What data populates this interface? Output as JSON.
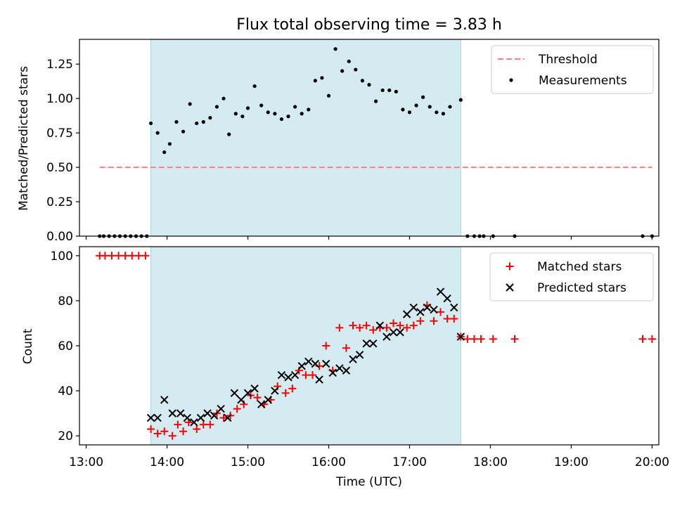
{
  "chart_data": [
    {
      "type": "scatter",
      "title": "Flux total observing time = 3.83 h",
      "ylabel": "Matched/Predicted stars",
      "xlabel": "",
      "xlim": [
        "13:00",
        "20:00"
      ],
      "ylim": [
        0,
        1.43
      ],
      "yticks": [
        0,
        0.25,
        0.5,
        0.75,
        1.0,
        1.25
      ],
      "ytick_labels": [
        "0.00",
        "0.25",
        "0.50",
        "0.75",
        "1.00",
        "1.25"
      ],
      "legend_position": "top-right",
      "shaded_interval": {
        "start": "13:48",
        "end": "17:38",
        "color": "#d4ebf1"
      },
      "threshold": {
        "name": "Threshold",
        "y": 0.5,
        "x_start": "13:10",
        "x_end": "20:00",
        "color": "#ff7f7f",
        "style": "dashed"
      },
      "series": [
        {
          "name": "Measurements",
          "marker": "dot",
          "color": "#000000",
          "points": [
            [
              "13:10",
              0
            ],
            [
              "13:13",
              0
            ],
            [
              "13:17",
              0
            ],
            [
              "13:21",
              0
            ],
            [
              "13:25",
              0
            ],
            [
              "13:29",
              0
            ],
            [
              "13:33",
              0
            ],
            [
              "13:37",
              0
            ],
            [
              "13:41",
              0
            ],
            [
              "13:45",
              0
            ],
            [
              "13:48",
              0.82
            ],
            [
              "13:53",
              0.75
            ],
            [
              "13:58",
              0.61
            ],
            [
              "14:02",
              0.67
            ],
            [
              "14:07",
              0.83
            ],
            [
              "14:12",
              0.76
            ],
            [
              "14:17",
              0.96
            ],
            [
              "14:22",
              0.82
            ],
            [
              "14:27",
              0.83
            ],
            [
              "14:32",
              0.86
            ],
            [
              "14:37",
              0.94
            ],
            [
              "14:42",
              1.0
            ],
            [
              "14:46",
              0.74
            ],
            [
              "14:51",
              0.89
            ],
            [
              "14:56",
              0.87
            ],
            [
              "15:00",
              0.93
            ],
            [
              "15:05",
              1.09
            ],
            [
              "15:10",
              0.95
            ],
            [
              "15:15",
              0.9
            ],
            [
              "15:20",
              0.89
            ],
            [
              "15:25",
              0.85
            ],
            [
              "15:30",
              0.87
            ],
            [
              "15:35",
              0.94
            ],
            [
              "15:40",
              0.89
            ],
            [
              "15:45",
              0.92
            ],
            [
              "15:50",
              1.13
            ],
            [
              "15:55",
              1.15
            ],
            [
              "16:00",
              1.02
            ],
            [
              "16:05",
              1.36
            ],
            [
              "16:10",
              1.2
            ],
            [
              "16:15",
              1.27
            ],
            [
              "16:20",
              1.21
            ],
            [
              "16:25",
              1.13
            ],
            [
              "16:30",
              1.1
            ],
            [
              "16:35",
              0.98
            ],
            [
              "16:40",
              1.06
            ],
            [
              "16:45",
              1.06
            ],
            [
              "16:50",
              1.05
            ],
            [
              "16:55",
              0.92
            ],
            [
              "17:00",
              0.9
            ],
            [
              "17:05",
              0.95
            ],
            [
              "17:10",
              1.01
            ],
            [
              "17:15",
              0.94
            ],
            [
              "17:20",
              0.9
            ],
            [
              "17:25",
              0.89
            ],
            [
              "17:30",
              0.94
            ],
            [
              "17:38",
              0.99
            ],
            [
              "17:43",
              0
            ],
            [
              "17:48",
              0
            ],
            [
              "17:52",
              0
            ],
            [
              "17:55",
              0
            ],
            [
              "18:02",
              0
            ],
            [
              "18:18",
              0
            ],
            [
              "19:53",
              0
            ],
            [
              "20:00",
              0
            ]
          ]
        }
      ]
    },
    {
      "type": "scatter",
      "title": "",
      "ylabel": "Count",
      "xlabel": "Time (UTC)",
      "xlim": [
        "13:00",
        "20:00"
      ],
      "ylim": [
        16,
        104
      ],
      "yticks": [
        20,
        40,
        60,
        80,
        100
      ],
      "ytick_labels": [
        "20",
        "40",
        "60",
        "80",
        "100"
      ],
      "xticks": [
        "13:00",
        "14:00",
        "15:00",
        "16:00",
        "17:00",
        "18:00",
        "19:00",
        "20:00"
      ],
      "xtick_labels": [
        "13:00",
        "14:00",
        "15:00",
        "16:00",
        "17:00",
        "18:00",
        "19:00",
        "20:00"
      ],
      "legend_position": "top-right",
      "shaded_interval": {
        "start": "13:48",
        "end": "17:38",
        "color": "#d4ebf1"
      },
      "series": [
        {
          "name": "Matched stars",
          "marker": "plus",
          "color": "#ff0000",
          "points": [
            [
              "13:10",
              100
            ],
            [
              "13:14",
              100
            ],
            [
              "13:19",
              100
            ],
            [
              "13:24",
              100
            ],
            [
              "13:29",
              100
            ],
            [
              "13:34",
              100
            ],
            [
              "13:39",
              100
            ],
            [
              "13:44",
              100
            ],
            [
              "13:48",
              23
            ],
            [
              "13:53",
              21
            ],
            [
              "13:58",
              22
            ],
            [
              "14:04",
              20
            ],
            [
              "14:08",
              25
            ],
            [
              "14:12",
              22
            ],
            [
              "14:16",
              26
            ],
            [
              "14:22",
              23
            ],
            [
              "14:27",
              25
            ],
            [
              "14:32",
              25
            ],
            [
              "14:37",
              30
            ],
            [
              "14:42",
              28
            ],
            [
              "14:47",
              29
            ],
            [
              "14:52",
              32
            ],
            [
              "14:57",
              34
            ],
            [
              "15:02",
              38
            ],
            [
              "15:07",
              37
            ],
            [
              "15:12",
              34
            ],
            [
              "15:17",
              36
            ],
            [
              "15:22",
              42
            ],
            [
              "15:28",
              39
            ],
            [
              "15:33",
              41
            ],
            [
              "15:38",
              49
            ],
            [
              "15:43",
              47
            ],
            [
              "15:48",
              47
            ],
            [
              "15:53",
              51
            ],
            [
              "15:58",
              60
            ],
            [
              "16:03",
              49
            ],
            [
              "16:08",
              68
            ],
            [
              "16:13",
              59
            ],
            [
              "16:18",
              69
            ],
            [
              "16:23",
              68
            ],
            [
              "16:28",
              69
            ],
            [
              "16:33",
              67
            ],
            [
              "16:38",
              68
            ],
            [
              "16:43",
              68
            ],
            [
              "16:48",
              70
            ],
            [
              "16:53",
              69
            ],
            [
              "16:58",
              68
            ],
            [
              "17:03",
              69
            ],
            [
              "17:08",
              71
            ],
            [
              "17:13",
              78
            ],
            [
              "17:18",
              71
            ],
            [
              "17:23",
              75
            ],
            [
              "17:28",
              72
            ],
            [
              "17:33",
              72
            ],
            [
              "17:38",
              64
            ],
            [
              "17:43",
              63
            ],
            [
              "17:48",
              63
            ],
            [
              "17:53",
              63
            ],
            [
              "18:02",
              63
            ],
            [
              "18:18",
              63
            ],
            [
              "19:53",
              63
            ],
            [
              "20:00",
              63
            ]
          ]
        },
        {
          "name": "Predicted stars",
          "marker": "x",
          "color": "#000000",
          "points": [
            [
              "13:48",
              28
            ],
            [
              "13:53",
              28
            ],
            [
              "13:58",
              36
            ],
            [
              "14:04",
              30
            ],
            [
              "14:10",
              30
            ],
            [
              "14:15",
              28
            ],
            [
              "14:20",
              26
            ],
            [
              "14:25",
              28
            ],
            [
              "14:30",
              30
            ],
            [
              "14:35",
              29
            ],
            [
              "14:40",
              32
            ],
            [
              "14:45",
              28
            ],
            [
              "14:50",
              39
            ],
            [
              "14:55",
              36
            ],
            [
              "15:00",
              39
            ],
            [
              "15:05",
              41
            ],
            [
              "15:10",
              34
            ],
            [
              "15:15",
              36
            ],
            [
              "15:20",
              40
            ],
            [
              "15:25",
              47
            ],
            [
              "15:30",
              46
            ],
            [
              "15:35",
              47
            ],
            [
              "15:40",
              51
            ],
            [
              "15:45",
              53
            ],
            [
              "15:50",
              52
            ],
            [
              "15:53",
              45
            ],
            [
              "15:58",
              52
            ],
            [
              "16:03",
              48
            ],
            [
              "16:08",
              50
            ],
            [
              "16:13",
              49
            ],
            [
              "16:18",
              54
            ],
            [
              "16:23",
              56
            ],
            [
              "16:28",
              61
            ],
            [
              "16:33",
              61
            ],
            [
              "16:38",
              69
            ],
            [
              "16:43",
              64
            ],
            [
              "16:48",
              66
            ],
            [
              "16:53",
              66
            ],
            [
              "16:58",
              74
            ],
            [
              "17:03",
              77
            ],
            [
              "17:08",
              75
            ],
            [
              "17:13",
              77
            ],
            [
              "17:18",
              76
            ],
            [
              "17:23",
              84
            ],
            [
              "17:28",
              81
            ],
            [
              "17:33",
              77
            ],
            [
              "17:38",
              64
            ]
          ]
        }
      ]
    }
  ]
}
